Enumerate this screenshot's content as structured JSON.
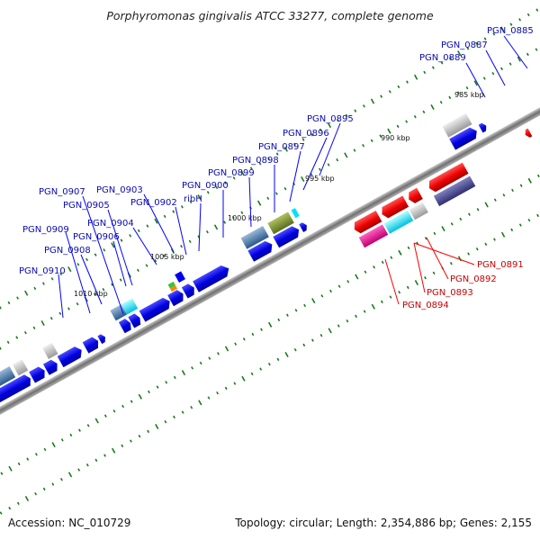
{
  "title": "Porphyromonas gingivalis ATCC 33277, complete genome",
  "footer": {
    "accession": "Accession: NC_010729",
    "topology": "Topology: circular; Length: 2,354,886 bp; Genes: 2,155"
  },
  "scale_labels": [
    "985 kbp",
    "990 kbp",
    "995 kbp",
    "1000 kbp",
    "1005 kbp",
    "1010 kbp"
  ],
  "forward_gene_labels": [
    "PGN_0885",
    "PGN_0887",
    "PGN_0889",
    "PGN_0895",
    "PGN_0896",
    "PGN_0897",
    "PGN_0898",
    "PGN_0899",
    "PGN_0900",
    "ribH",
    "PGN_0902",
    "PGN_0903",
    "PGN_0904",
    "PGN_0905",
    "PGN_0906",
    "PGN_0907",
    "PGN_0908",
    "PGN_0909",
    "PGN_0910"
  ],
  "reverse_gene_labels": [
    "PGN_0891",
    "PGN_0892",
    "PGN_0893",
    "PGN_0894"
  ],
  "colors": {
    "forward": "#0000ee",
    "reverse": "#ee0000",
    "label_forward": "#0a0ab0",
    "label_reverse": "#c80000",
    "backbone": "#888888",
    "tick": "#1a7a1a"
  }
}
